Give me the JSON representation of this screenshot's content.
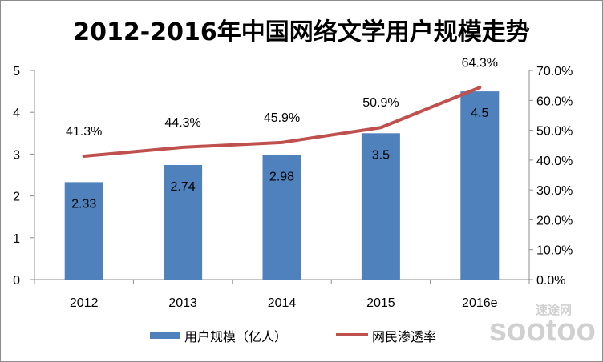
{
  "colors": {
    "bar": "#4f81bd",
    "line": "#c0504d",
    "axis": "#8c8c8c"
  },
  "watermark": {
    "line1": "速途网",
    "line2": "sootoo"
  },
  "chart_data": {
    "type": "bar",
    "title": "2012-2016年中国网络文学用户规模走势",
    "categories": [
      "2012",
      "2013",
      "2014",
      "2015",
      "2016e"
    ],
    "series": [
      {
        "name": "用户规模（亿人）",
        "type": "bar",
        "axis": "left",
        "values": [
          2.33,
          2.74,
          2.98,
          3.5,
          4.5
        ],
        "labels": [
          "2.33",
          "2.74",
          "2.98",
          "3.5",
          "4.5"
        ]
      },
      {
        "name": "网民渗透率",
        "type": "line",
        "axis": "right",
        "values": [
          41.3,
          44.3,
          45.9,
          50.9,
          64.3
        ],
        "labels": [
          "41.3%",
          "44.3%",
          "45.9%",
          "50.9%",
          "64.3%"
        ]
      }
    ],
    "y_left": {
      "ylim": [
        0,
        5
      ],
      "ticks": [
        "0",
        "1",
        "2",
        "3",
        "4",
        "5"
      ]
    },
    "y_right": {
      "ylim": [
        0,
        70
      ],
      "ticks": [
        "0.0%",
        "10.0%",
        "20.0%",
        "30.0%",
        "40.0%",
        "50.0%",
        "60.0%",
        "70.0%"
      ]
    },
    "legend_position": "bottom",
    "grid": false
  }
}
